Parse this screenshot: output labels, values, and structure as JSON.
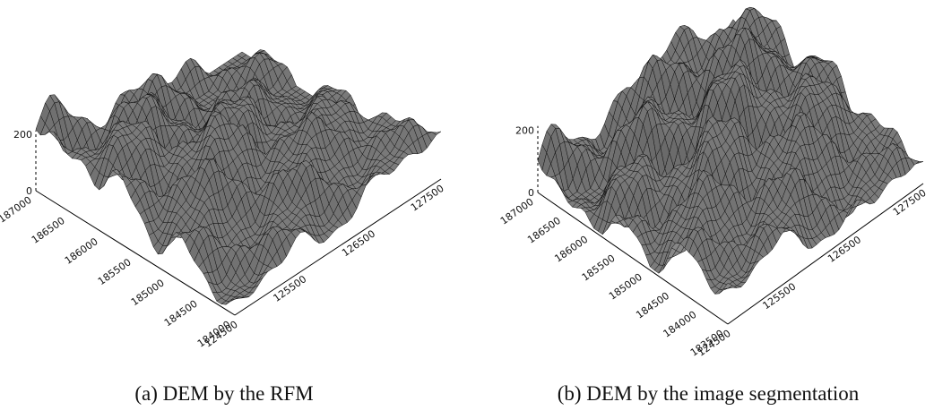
{
  "panels": [
    {
      "caption": "(a) DEM by the RFM",
      "z_ticks": [
        0,
        200
      ],
      "y_ticks": [
        187000,
        186500,
        186000,
        185500,
        185000,
        184500,
        184000
      ],
      "x_ticks": [
        124500,
        125500,
        126500,
        127500
      ]
    },
    {
      "caption": "(b) DEM by the image segmentation",
      "z_ticks": [
        0,
        200
      ],
      "y_ticks": [
        187000,
        186500,
        186000,
        185500,
        185000,
        184500,
        184000,
        183500
      ],
      "x_ticks": [
        124500,
        125500,
        126500,
        127500
      ]
    }
  ]
}
